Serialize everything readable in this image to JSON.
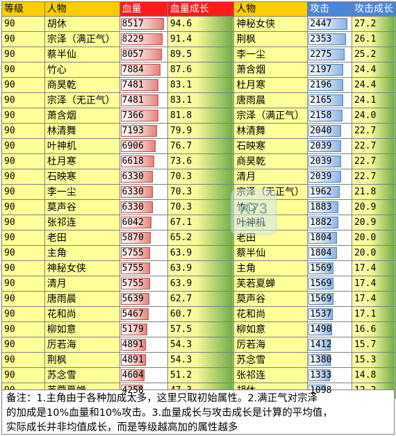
{
  "headers": {
    "level": "等级",
    "name1": "人物",
    "hp": "血量",
    "hp_growth": "血量成长",
    "name2": "人物",
    "atk": "攻击",
    "atk_growth": "攻击成长"
  },
  "hp_rows": [
    {
      "level": "90",
      "name": "胡休",
      "hp": "8517",
      "hp_num": 8517,
      "growth": "94.6"
    },
    {
      "level": "90",
      "name": "宗泽（满正气）",
      "hp": "8229",
      "hp_num": 8229,
      "growth": "91.4"
    },
    {
      "level": "90",
      "name": "蔡半仙",
      "hp": "8057",
      "hp_num": 8057,
      "growth": "89.5"
    },
    {
      "level": "90",
      "name": "竹心",
      "hp": "7884",
      "hp_num": 7884,
      "growth": "87.6"
    },
    {
      "level": "90",
      "name": "商昊乾",
      "hp": "7481",
      "hp_num": 7481,
      "growth": "83.1"
    },
    {
      "level": "90",
      "name": "宗泽（无正气）",
      "hp": "7481",
      "hp_num": 7481,
      "growth": "83.1"
    },
    {
      "level": "90",
      "name": "萧含烟",
      "hp": "7366",
      "hp_num": 7366,
      "growth": "81.8"
    },
    {
      "level": "90",
      "name": "林清舞",
      "hp": "7193",
      "hp_num": 7193,
      "growth": "79.9"
    },
    {
      "level": "90",
      "name": "叶神机",
      "hp": "6906",
      "hp_num": 6906,
      "growth": "76.7"
    },
    {
      "level": "90",
      "name": "杜月寒",
      "hp": "6618",
      "hp_num": 6618,
      "growth": "73.6"
    },
    {
      "level": "90",
      "name": "石映寒",
      "hp": "6330",
      "hp_num": 6330,
      "growth": "70.3"
    },
    {
      "level": "90",
      "name": "李一尘",
      "hp": "6330",
      "hp_num": 6330,
      "growth": "70.3"
    },
    {
      "level": "90",
      "name": "莫声谷",
      "hp": "6330",
      "hp_num": 6330,
      "growth": "70.3"
    },
    {
      "level": "90",
      "name": "张祁连",
      "hp": "6042",
      "hp_num": 6042,
      "growth": "67.1"
    },
    {
      "level": "90",
      "name": "老田",
      "hp": "5870",
      "hp_num": 5870,
      "growth": "65.2"
    },
    {
      "level": "90",
      "name": "主角",
      "hp": "5755",
      "hp_num": 5755,
      "growth": "63.9"
    },
    {
      "level": "90",
      "name": "神秘女侠",
      "hp": "5755",
      "hp_num": 5755,
      "growth": "63.9"
    },
    {
      "level": "90",
      "name": "清月",
      "hp": "5755",
      "hp_num": 5755,
      "growth": "63.9"
    },
    {
      "level": "90",
      "name": "唐雨晨",
      "hp": "5639",
      "hp_num": 5639,
      "growth": "62.7"
    },
    {
      "level": "90",
      "name": "花和尚",
      "hp": "5467",
      "hp_num": 5467,
      "growth": "60.7"
    },
    {
      "level": "90",
      "name": "柳如意",
      "hp": "5179",
      "hp_num": 5179,
      "growth": "57.5"
    },
    {
      "level": "90",
      "name": "厉若海",
      "hp": "4891",
      "hp_num": 4891,
      "growth": "54.3"
    },
    {
      "level": "90",
      "name": "荆枫",
      "hp": "4891",
      "hp_num": 4891,
      "growth": "54.3"
    },
    {
      "level": "90",
      "name": "苏念雪",
      "hp": "4604",
      "hp_num": 4604,
      "growth": "51.2"
    },
    {
      "level": "90",
      "name": "芙蓉夏蝉",
      "hp": "4258",
      "hp_num": 4258,
      "growth": "47.3"
    }
  ],
  "atk_rows": [
    {
      "name": "神秘女侠",
      "atk": "2447",
      "atk_num": 2447,
      "growth": "27.2"
    },
    {
      "name": "荆枫",
      "atk": "2353",
      "atk_num": 2353,
      "growth": "26.1"
    },
    {
      "name": "李一尘",
      "atk": "2275",
      "atk_num": 2275,
      "growth": "25.2"
    },
    {
      "name": "萧含烟",
      "atk": "2197",
      "atk_num": 2197,
      "growth": "24.4"
    },
    {
      "name": "杜月寒",
      "atk": "2196",
      "atk_num": 2196,
      "growth": "24.4"
    },
    {
      "name": "唐雨晨",
      "atk": "2165",
      "atk_num": 2165,
      "growth": "24.1"
    },
    {
      "name": "宗泽（满正气）",
      "atk": "2158",
      "atk_num": 2158,
      "growth": "24.0"
    },
    {
      "name": "林清舞",
      "atk": "2040",
      "atk_num": 2040,
      "growth": "22.7"
    },
    {
      "name": "石映寒",
      "atk": "2039",
      "atk_num": 2039,
      "growth": "22.7"
    },
    {
      "name": "商昊乾",
      "atk": "2039",
      "atk_num": 2039,
      "growth": "22.7"
    },
    {
      "name": "清月",
      "atk": "2039",
      "atk_num": 2039,
      "growth": "22.7"
    },
    {
      "name": "宗泽（无正气）",
      "atk": "1962",
      "atk_num": 1962,
      "growth": "21.8"
    },
    {
      "name": "竹心",
      "atk": "1883",
      "atk_num": 1883,
      "growth": "20.9"
    },
    {
      "name": "叶神机",
      "atk": "1882",
      "atk_num": 1882,
      "growth": "20.9"
    },
    {
      "name": "老田",
      "atk": "1804",
      "atk_num": 1804,
      "growth": "20.0"
    },
    {
      "name": "蔡半仙",
      "atk": "1804",
      "atk_num": 1804,
      "growth": "20.0"
    },
    {
      "name": "主角",
      "atk": "1569",
      "atk_num": 1569,
      "growth": "17.4"
    },
    {
      "name": "芙若夏蝉",
      "atk": "1569",
      "atk_num": 1569,
      "growth": "17.4"
    },
    {
      "name": "莫声谷",
      "atk": "1569",
      "atk_num": 1569,
      "growth": "17.4"
    },
    {
      "name": "花和尚",
      "atk": "1537",
      "atk_num": 1537,
      "growth": "17.1"
    },
    {
      "name": "柳如意",
      "atk": "1490",
      "atk_num": 1490,
      "growth": "16.6"
    },
    {
      "name": "厉若海",
      "atk": "1412",
      "atk_num": 1412,
      "growth": "15.7"
    },
    {
      "name": "苏念雪",
      "atk": "1380",
      "atk_num": 1380,
      "growth": "15.3"
    },
    {
      "name": "张祁连",
      "atk": "1333",
      "atk_num": 1333,
      "growth": "14.8"
    },
    {
      "name": "胡休",
      "atk": "1098",
      "atk_num": 1098,
      "growth": "12.2"
    }
  ],
  "note": {
    "line1": "备注：1.主角由于各种加成太多，这里只取初始属性。2.满正气对宗泽",
    "line2": "的加成是10%血量和10%攻击。3.血量成长与攻击成长是计算的平均值，",
    "line3": "实际成长并非均值成长，而是等级越高加的属性越多"
  },
  "watermark": {
    "logo_text": "K73",
    "sub_text": "游戏之家"
  },
  "colors": {
    "header_yellow": "#ffcc00",
    "header_red": "#ff1a1a",
    "header_blue": "#4a86d8",
    "cell_yellow": "#ffff99",
    "growth_green": "#70ad47"
  }
}
